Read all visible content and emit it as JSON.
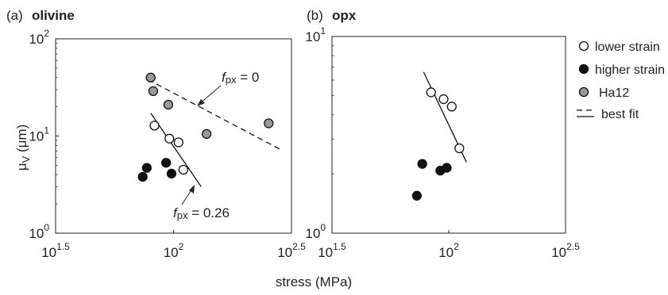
{
  "figure": {
    "xlabel": "stress (MPa)",
    "ylabel_main": "μ",
    "ylabel_sub": "V",
    "ylabel_unit": " (μm)"
  },
  "legend": {
    "lower_strain": "lower strain",
    "higher_strain": "higher strain",
    "ha12": "Ha12",
    "best_fit": "best fit"
  },
  "colors": {
    "higher_strain": "#111111",
    "ha12": "#9a9a9a",
    "lower_strain": "#ffffff"
  },
  "chart_data": [
    {
      "type": "scatter",
      "panel_letter": "(a)",
      "title": "olivine",
      "xscale": "log",
      "yscale": "log",
      "xlim": [
        31.62,
        316.2
      ],
      "ylim": [
        1,
        100
      ],
      "x_ticks": [
        {
          "base": "10",
          "exp": "1.5"
        },
        {
          "base": "10",
          "exp": "2"
        },
        {
          "base": "10",
          "exp": "2.5"
        }
      ],
      "y_ticks": [
        {
          "base": "10",
          "exp": "0"
        },
        {
          "base": "10",
          "exp": "1"
        },
        {
          "base": "10",
          "exp": "2"
        }
      ],
      "series": [
        {
          "name": "lower strain",
          "points": [
            [
              83,
              12.8
            ],
            [
              96,
              9.4
            ],
            [
              105,
              8.6
            ],
            [
              110,
              4.5
            ]
          ]
        },
        {
          "name": "higher strain",
          "points": [
            [
              74,
              3.8
            ],
            [
              77,
              4.7
            ],
            [
              93,
              5.3
            ],
            [
              98,
              4.1
            ]
          ]
        },
        {
          "name": "Ha12",
          "points": [
            [
              80,
              40
            ],
            [
              82,
              29
            ],
            [
              95,
              21
            ],
            [
              138,
              10.5
            ],
            [
              253,
              13.5
            ]
          ]
        },
        {
          "name": "best fit",
          "style": "dashed",
          "points": [
            [
              78,
              38
            ],
            [
              286,
              7.2
            ]
          ]
        },
        {
          "name": "lower strain fit",
          "style": "solid",
          "points": [
            [
              80,
              17.2
            ],
            [
              131,
              3.0
            ]
          ]
        }
      ],
      "annotations": [
        {
          "prefix": "f",
          "sub": "px",
          "rest": " = 0"
        },
        {
          "prefix": "f",
          "sub": "px",
          "rest": " = 0.26"
        }
      ]
    },
    {
      "type": "scatter",
      "panel_letter": "(b)",
      "title": "opx",
      "xscale": "log",
      "yscale": "log",
      "xlim": [
        31.62,
        316.2
      ],
      "ylim": [
        1,
        10
      ],
      "x_ticks": [
        {
          "base": "10",
          "exp": "1.5"
        },
        {
          "base": "10",
          "exp": "2"
        },
        {
          "base": "10",
          "exp": "2.5"
        }
      ],
      "y_ticks": [
        {
          "base": "10",
          "exp": "0"
        },
        {
          "base": "10",
          "exp": "1"
        }
      ],
      "series": [
        {
          "name": "lower strain",
          "points": [
            [
              84,
              5.2
            ],
            [
              95,
              4.8
            ],
            [
              103,
              4.4
            ],
            [
              111,
              2.7
            ]
          ]
        },
        {
          "name": "higher strain",
          "points": [
            [
              73,
              1.55
            ],
            [
              77,
              2.25
            ],
            [
              92,
              2.08
            ],
            [
              98,
              2.15
            ]
          ]
        },
        {
          "name": "lower strain fit",
          "style": "solid",
          "points": [
            [
              78,
              6.6
            ],
            [
              119,
              2.3
            ]
          ]
        }
      ]
    }
  ]
}
